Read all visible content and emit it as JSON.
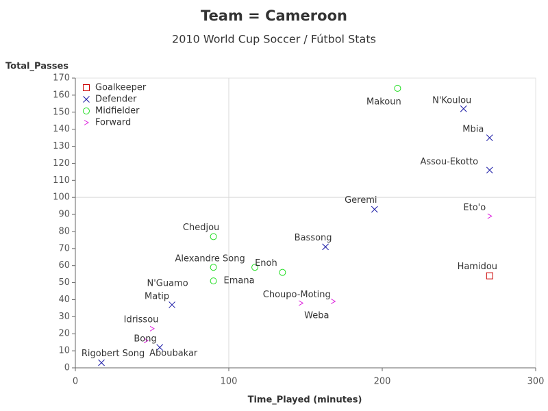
{
  "chart_data": {
    "type": "scatter",
    "title": "Team = Cameroon",
    "subtitle": "2010 World Cup Soccer / Fútbol Stats",
    "x_label": "Time_Played (minutes)",
    "y_label": "Total_Passes",
    "xlim": [
      0,
      300
    ],
    "xticks": [
      0,
      100,
      200,
      300
    ],
    "ylim": [
      0,
      170
    ],
    "yticks": [
      0,
      10,
      20,
      30,
      40,
      50,
      60,
      70,
      80,
      90,
      100,
      110,
      120,
      130,
      140,
      150,
      160,
      170
    ],
    "x_reference_lines": [
      100
    ],
    "y_reference_lines": [
      100
    ],
    "legend": "top-left",
    "series": [
      {
        "name": "Goalkeeper",
        "color": "#cc0000",
        "marker": "square",
        "x": [
          270
        ],
        "values": [
          54
        ],
        "labels": [
          "Hamidou"
        ]
      },
      {
        "name": "Defender",
        "color": "#1a1aa6",
        "marker": "x",
        "x": [
          253,
          270,
          270,
          195,
          163,
          63,
          55,
          17
        ],
        "values": [
          152,
          135,
          116,
          93,
          71,
          37,
          12,
          3
        ],
        "labels": [
          "N'Koulou",
          "Mbia",
          "Assou-Ekotto",
          "Geremi",
          "Bassong",
          "Matip",
          "Aboubakar",
          "Rigobert Song"
        ]
      },
      {
        "name": "Midfielder",
        "color": "#22dd22",
        "marker": "circle",
        "x": [
          210,
          90,
          90,
          90,
          117,
          135
        ],
        "values": [
          164,
          77,
          59,
          51,
          59,
          56
        ],
        "labels": [
          "Makoun",
          "Chedjou",
          "Alexandre Song",
          "N'Guamo",
          "Emana",
          "Enoh"
        ]
      },
      {
        "name": "Forward",
        "color": "#dd22dd",
        "marker": "gt",
        "x": [
          270,
          147,
          168,
          50,
          46
        ],
        "values": [
          89,
          38,
          39,
          23,
          16
        ],
        "labels": [
          "Eto'o",
          "Choupo-Moting",
          "Weba",
          "Idrissou",
          "Bong"
        ]
      }
    ]
  }
}
